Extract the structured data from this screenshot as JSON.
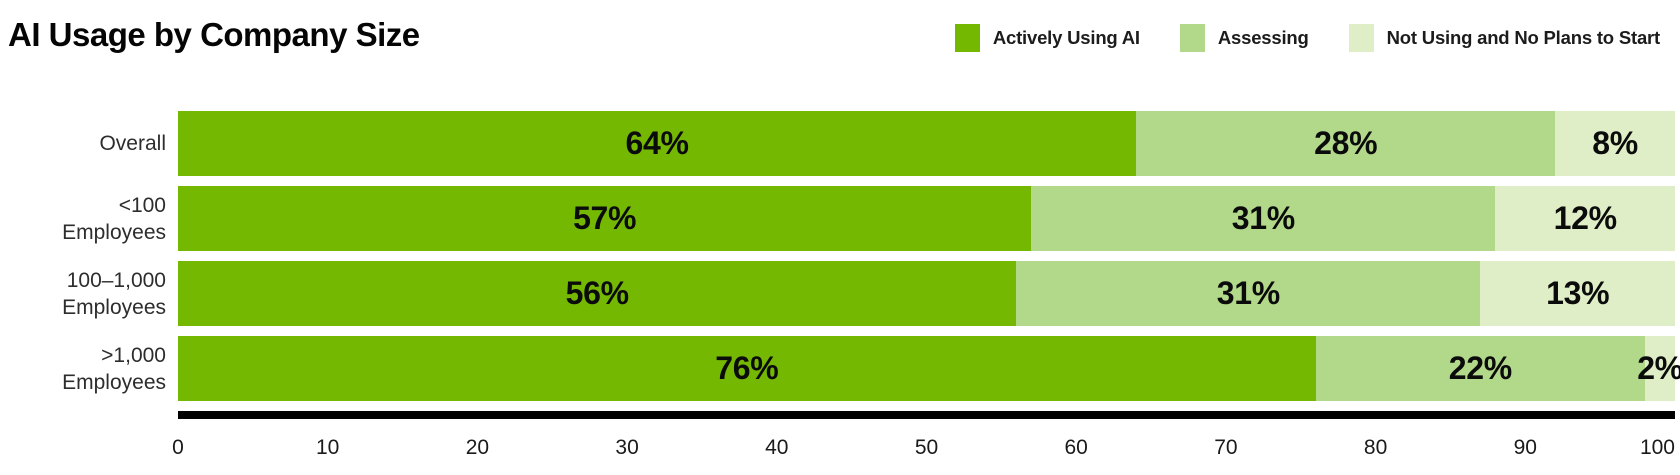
{
  "chart_data": {
    "type": "bar",
    "orientation": "horizontal",
    "stacked": true,
    "title": "AI Usage by Company Size",
    "categories": [
      "Overall",
      "<100 Employees",
      "100–1,000 Employees",
      ">1,000 Employees"
    ],
    "category_lines": [
      [
        "Overall"
      ],
      [
        "<100",
        "Employees"
      ],
      [
        "100–1,000",
        "Employees"
      ],
      [
        ">1,000",
        "Employees"
      ]
    ],
    "series": [
      {
        "name": "Actively Using AI",
        "color": "#75b802",
        "values": [
          64,
          57,
          56,
          76
        ]
      },
      {
        "name": "Assessing",
        "color": "#b2d88a",
        "values": [
          28,
          31,
          31,
          22
        ]
      },
      {
        "name": "Not Using and No Plans to Start",
        "color": "#dfeec6",
        "values": [
          8,
          12,
          13,
          2
        ]
      }
    ],
    "value_suffix": "%",
    "x_axis": {
      "min": 0,
      "max": 100,
      "step": 10,
      "ticks": [
        0,
        10,
        20,
        30,
        40,
        50,
        60,
        70,
        80,
        90,
        100
      ]
    },
    "grid": false,
    "legend_position": "top-right",
    "xlabel": "",
    "ylabel": ""
  },
  "styles": {
    "background": "#ffffff",
    "axis_line_color": "#000000",
    "value_label_color": "#0b0b0b",
    "category_label_color": "#2d2d2d",
    "tick_label_color": "#1a1a1a"
  }
}
